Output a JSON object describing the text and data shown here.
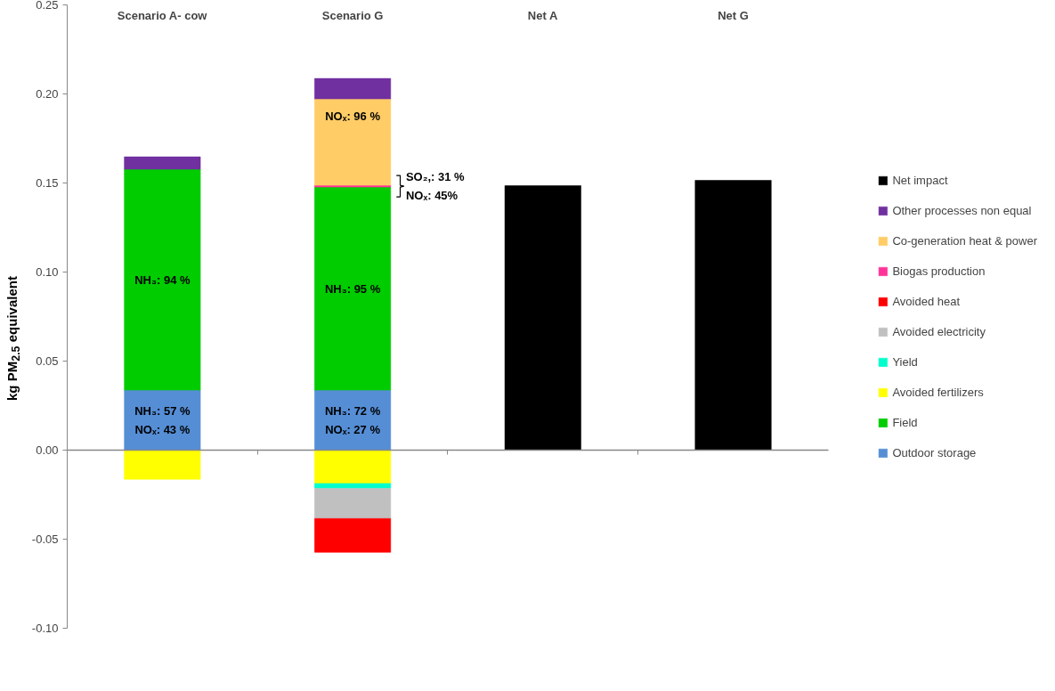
{
  "chart_data": {
    "type": "bar",
    "stacked": true,
    "ylabel": "kg PM$_{2.5}$ equivalent",
    "categories": [
      "Scenario A- cow",
      "Scenario G",
      "Net A",
      "Net G"
    ],
    "series": [
      {
        "name": "Outdoor storage",
        "color": "#558ed5",
        "values": [
          0.0337,
          0.0337,
          null,
          null
        ]
      },
      {
        "name": "Field",
        "color": "#00cc00",
        "values": [
          0.124,
          0.114,
          null,
          null
        ]
      },
      {
        "name": "Avoided fertilizers",
        "color": "#ffff00",
        "values": [
          -0.0164,
          -0.0187,
          null,
          null
        ]
      },
      {
        "name": "Yield",
        "color": "#00ffcc",
        "values": [
          null,
          -0.0028,
          null,
          null
        ]
      },
      {
        "name": "Avoided electricity",
        "color": "#c0c0c0",
        "values": [
          null,
          -0.0169,
          null,
          null
        ]
      },
      {
        "name": "Avoided heat",
        "color": "#ff0000",
        "values": [
          null,
          -0.019,
          null,
          null
        ]
      },
      {
        "name": "Biogas production",
        "color": "#ff3399",
        "values": [
          null,
          0.001,
          null,
          null
        ]
      },
      {
        "name": "Co-generation heat & power",
        "color": "#ffcc66",
        "values": [
          null,
          0.0485,
          null,
          null
        ]
      },
      {
        "name": "Other processes non equal",
        "color": "#7030a0",
        "values": [
          0.007,
          0.0115,
          null,
          null
        ]
      },
      {
        "name": "Net impact",
        "color": "#000000",
        "values": [
          null,
          null,
          0.1485,
          0.1515
        ]
      }
    ],
    "ylim": [
      -0.1,
      0.25
    ],
    "yticks": [
      {
        "value": -0.1,
        "label": "-0.10"
      },
      {
        "value": -0.05,
        "label": "-0.05"
      },
      {
        "value": 0,
        "label": "0.00"
      },
      {
        "value": 0.05,
        "label": "0.05"
      },
      {
        "value": 0.1,
        "label": "0.10"
      },
      {
        "value": 0.15,
        "label": "0.15"
      },
      {
        "value": 0.2,
        "label": "0.20"
      },
      {
        "value": 0.25,
        "label": "0.25"
      }
    ],
    "legend": "right",
    "annotations": [
      "NH₃: 57 %\nNOₓ: 43 %",
      "NH₃: 94 %",
      "NH₃: 72 %\nNOₓ: 27 %",
      "NH₃: 95 %",
      "SO₂,: 31 %\nNOₓ: 45%",
      "NOₓ: 96 %"
    ]
  }
}
